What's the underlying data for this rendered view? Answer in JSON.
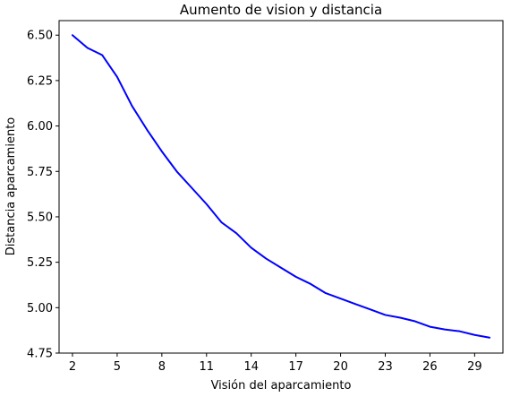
{
  "chart_data": {
    "type": "line",
    "title": "Aumento de vision y distancia",
    "xlabel": "Visión del aparcamiento",
    "ylabel": "Distancia aparcamiento",
    "xlim": [
      1.1,
      30.9
    ],
    "ylim": [
      4.75,
      6.58
    ],
    "x_ticks": [
      2,
      5,
      8,
      11,
      14,
      17,
      20,
      23,
      26,
      29
    ],
    "y_ticks": [
      4.75,
      5.0,
      5.25,
      5.5,
      5.75,
      6.0,
      6.25,
      6.5
    ],
    "y_tick_labels": [
      "4.75",
      "5.00",
      "5.25",
      "5.50",
      "5.75",
      "6.00",
      "6.25",
      "6.50"
    ],
    "grid": false,
    "series": [
      {
        "color": "#0000ff",
        "x": [
          2,
          3,
          4,
          5,
          6,
          7,
          8,
          9,
          10,
          11,
          12,
          13,
          14,
          15,
          16,
          17,
          18,
          19,
          20,
          21,
          22,
          23,
          24,
          25,
          26,
          27,
          28,
          29,
          30
        ],
        "values": [
          6.5,
          6.43,
          6.39,
          6.27,
          6.11,
          5.98,
          5.86,
          5.75,
          5.66,
          5.57,
          5.47,
          5.41,
          5.33,
          5.27,
          5.22,
          5.17,
          5.13,
          5.08,
          5.05,
          5.02,
          4.99,
          4.96,
          4.945,
          4.925,
          4.895,
          4.88,
          4.87,
          4.85,
          4.835
        ]
      }
    ]
  }
}
